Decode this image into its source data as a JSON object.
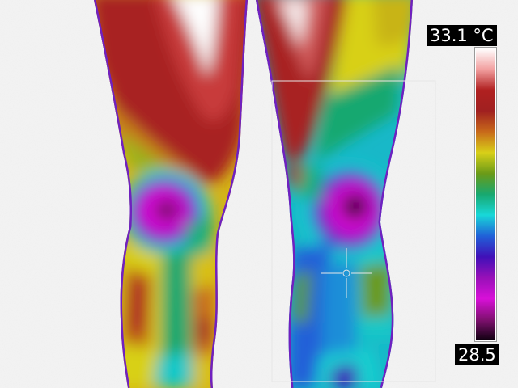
{
  "thermal_view": {
    "scale": {
      "max_label": "33.1 °C",
      "min_label": "28.5",
      "max_value": 33.1,
      "min_value": 28.5,
      "unit": "°C",
      "palette": [
        "#ffffff",
        "#f2a0a0",
        "#b02020",
        "#a02020",
        "#c86a1a",
        "#d8d018",
        "#6a9a18",
        "#18a870",
        "#18d8d8",
        "#2060d8",
        "#4010b8",
        "#9810b8",
        "#d810d8",
        "#801070",
        "#100010"
      ]
    },
    "colors": {
      "background": "#f4f4f4",
      "overlay_lines": "#e8e8e8",
      "label_bg": "#000000",
      "label_text": "#ffffff"
    }
  }
}
